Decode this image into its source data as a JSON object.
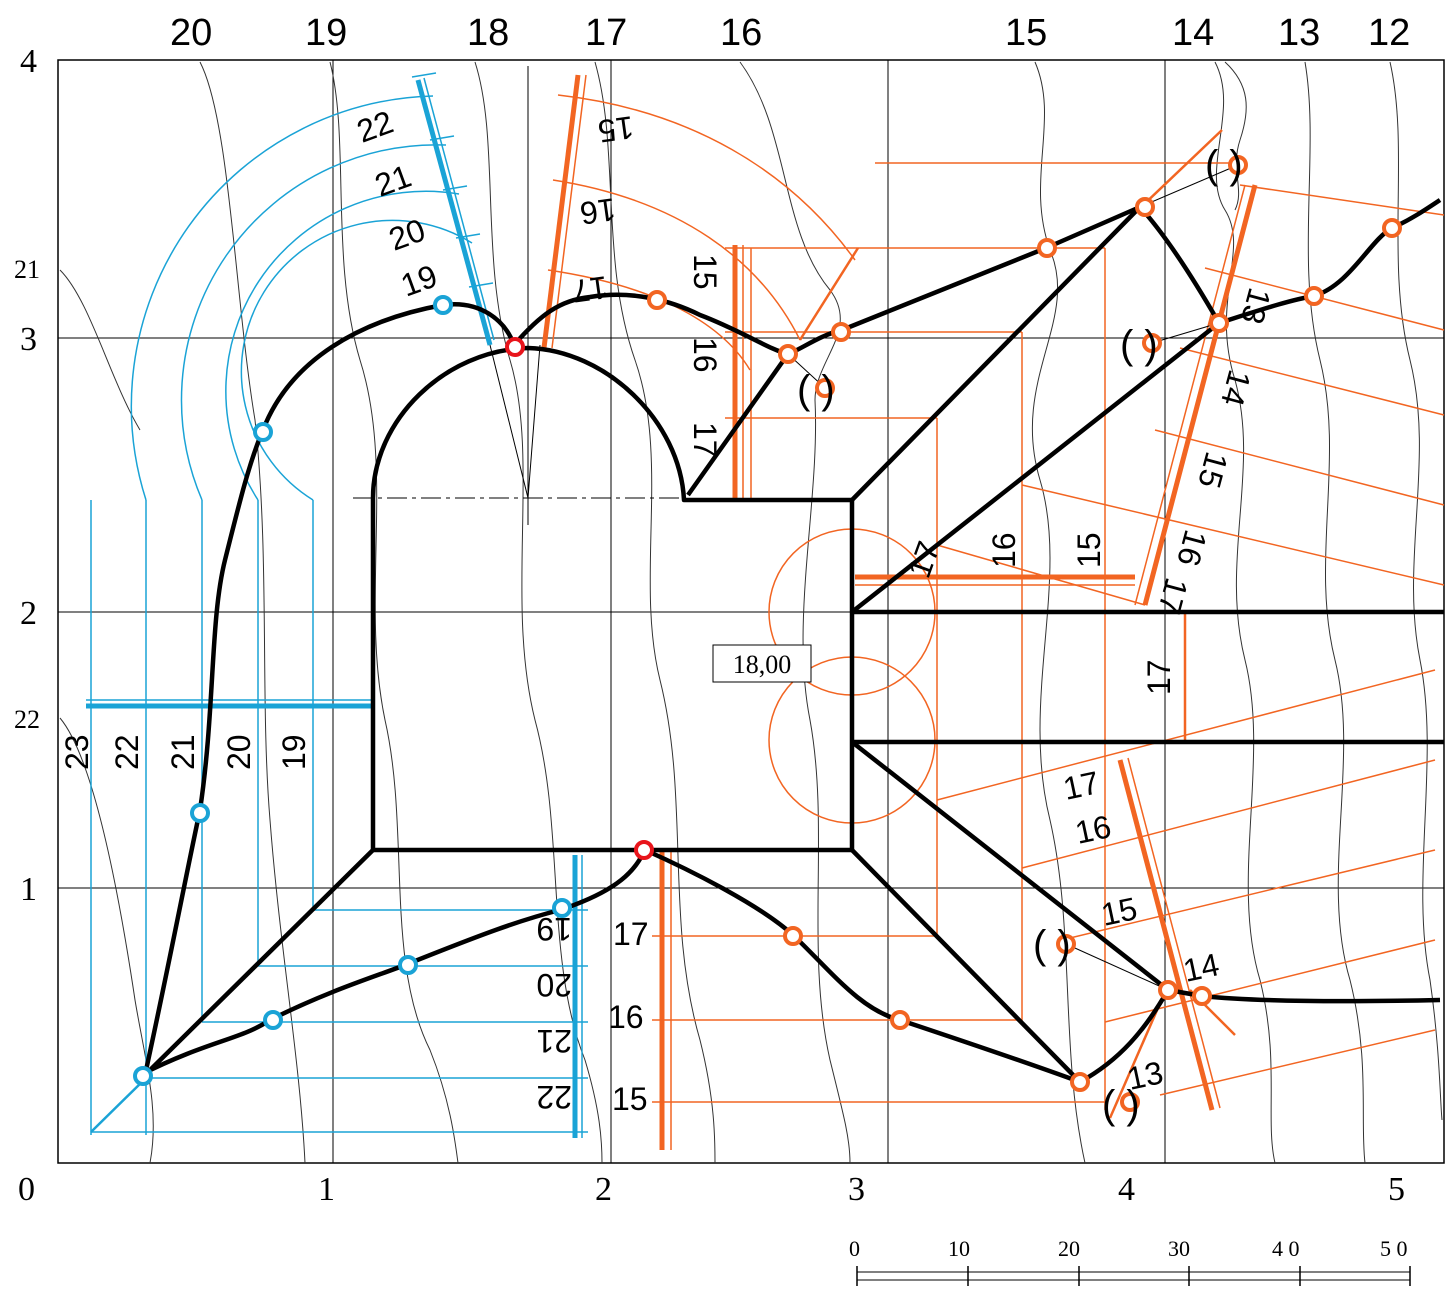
{
  "colors": {
    "ink": "#000000",
    "blue": "#1aa3d6",
    "orange": "#f26522",
    "red": "#e8141b",
    "contour": "#333333"
  },
  "top_contours": [
    "20",
    "19",
    "18",
    "17",
    "16",
    "15",
    "14",
    "13",
    "12"
  ],
  "grid_x_labels": [
    "0",
    "1",
    "2",
    "3",
    "4",
    "5"
  ],
  "grid_y_labels": [
    "4",
    "3",
    "2",
    "1"
  ],
  "left_margin_contours": [
    "21",
    "22"
  ],
  "blue_labels_slanted": [
    "22",
    "21",
    "20",
    "19"
  ],
  "blue_labels_vertical": [
    "23",
    "22",
    "21",
    "20",
    "19"
  ],
  "blue_labels_bottom": [
    "19",
    "20",
    "21",
    "22"
  ],
  "orange_labels_top_slanted": [
    "15",
    "16",
    "17"
  ],
  "orange_labels_top_vertical": [
    "15",
    "16",
    "17"
  ],
  "orange_labels_right_slanted": [
    "13",
    "14",
    "15",
    "16",
    "17"
  ],
  "orange_labels_mid_vertical": [
    "17",
    "16",
    "15"
  ],
  "orange_label_mid_right": "17",
  "orange_labels_bottom_left": [
    "17",
    "16",
    "15"
  ],
  "orange_labels_bottom_right": [
    "17",
    "16",
    "15",
    "14",
    "13"
  ],
  "paren_label": "( )",
  "elevation_box": "18,00",
  "scale": {
    "labels": [
      "0",
      "10",
      "20",
      "30",
      "4 0",
      "5 0"
    ]
  }
}
